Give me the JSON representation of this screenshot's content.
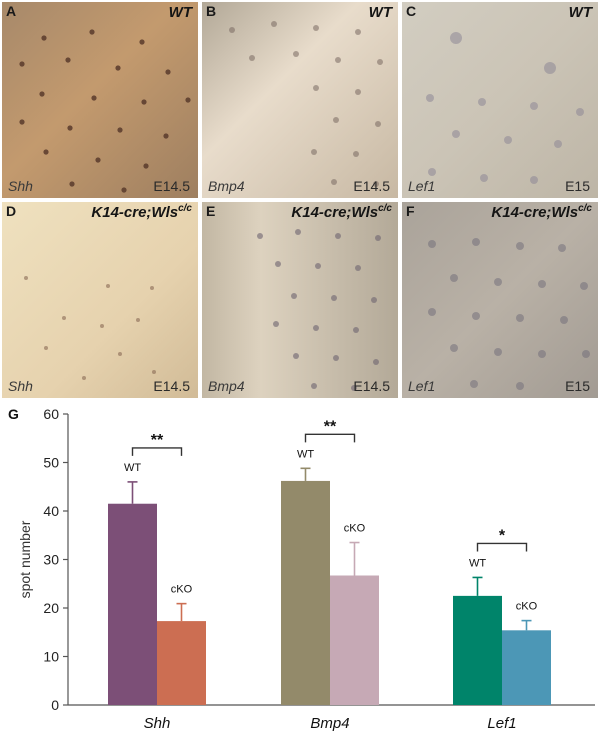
{
  "panels": [
    {
      "label": "A",
      "genotype": "WT",
      "genotype_sup": "",
      "gene": "Shh",
      "stage": "E14.5"
    },
    {
      "label": "B",
      "genotype": "WT",
      "genotype_sup": "",
      "gene": "Bmp4",
      "stage": "E14.5"
    },
    {
      "label": "C",
      "genotype": "WT",
      "genotype_sup": "",
      "gene": "Lef1",
      "stage": "E15"
    },
    {
      "label": "D",
      "genotype": "K14-cre;Wls",
      "genotype_sup": "c/c",
      "gene": "Shh",
      "stage": "E14.5"
    },
    {
      "label": "E",
      "genotype": "K14-cre;Wls",
      "genotype_sup": "c/c",
      "gene": "Bmp4",
      "stage": "E14.5"
    },
    {
      "label": "F",
      "genotype": "K14-cre;Wls",
      "genotype_sup": "c/c",
      "gene": "Lef1",
      "stage": "E15"
    }
  ],
  "chart_label": "G",
  "chart_data": {
    "type": "bar",
    "categories": [
      "Shh",
      "Bmp4",
      "Lef1"
    ],
    "ylabel": "spot number",
    "ylim": [
      0,
      60
    ],
    "yticks": [
      0,
      10,
      20,
      30,
      40,
      50,
      60
    ],
    "groups": [
      {
        "category": "Shh",
        "bars": [
          {
            "label": "WT",
            "value": 41.5,
            "error": 4.5,
            "color": "#7c4f77"
          },
          {
            "label": "cKO",
            "value": 17.3,
            "error": 3.6,
            "color": "#cc6e52"
          }
        ],
        "significance": "**"
      },
      {
        "category": "Bmp4",
        "bars": [
          {
            "label": "WT",
            "value": 46.2,
            "error": 2.6,
            "color": "#938a6a"
          },
          {
            "label": "cKO",
            "value": 26.7,
            "error": 6.8,
            "color": "#c6a9b5"
          }
        ],
        "significance": "**"
      },
      {
        "category": "Lef1",
        "bars": [
          {
            "label": "WT",
            "value": 22.5,
            "error": 3.8,
            "color": "#00846a"
          },
          {
            "label": "cKO",
            "value": 15.4,
            "error": 2.0,
            "color": "#4c97b6"
          }
        ],
        "significance": "*"
      }
    ]
  }
}
